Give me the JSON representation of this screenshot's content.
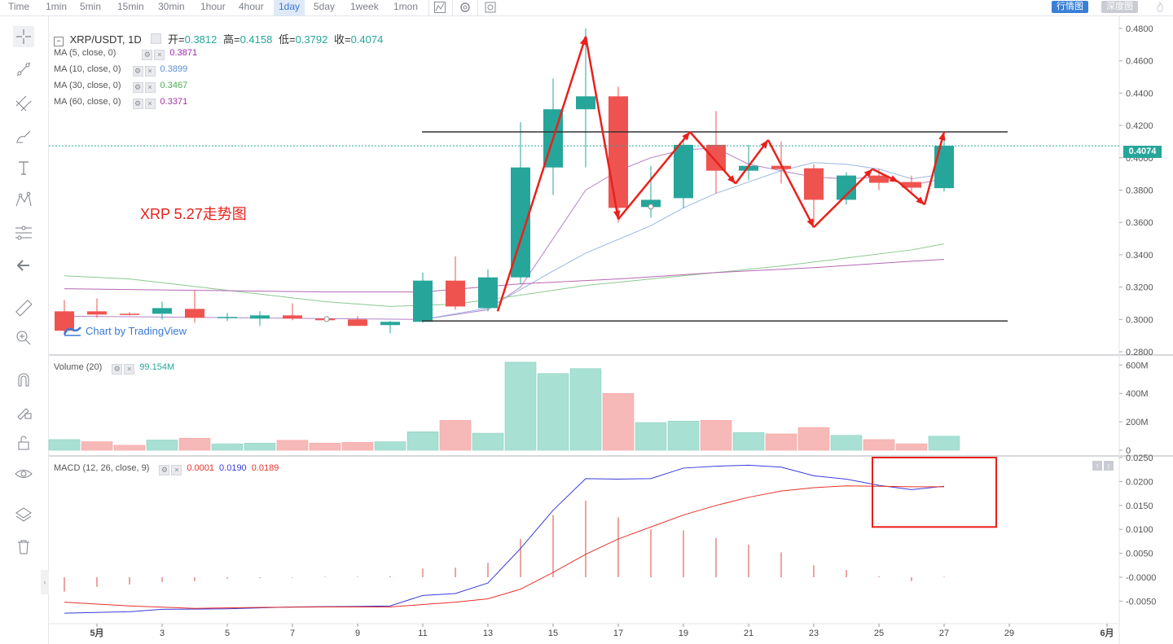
{
  "toolbar": {
    "intervals": [
      "Time",
      "1min",
      "5min",
      "15min",
      "30min",
      "1hour",
      "4hour",
      "1day",
      "5day",
      "1week",
      "1mon"
    ],
    "active_interval": "1day",
    "btn_candles": "行情图",
    "btn_depth": "深度图"
  },
  "header": {
    "symbol": "XRP/USDT, 1D",
    "open_label": "开=",
    "open": "0.3812",
    "high_label": "高=",
    "high": "0.4158",
    "low_label": "低=",
    "low": "0.3792",
    "close_label": "收=",
    "close": "0.4074"
  },
  "indicators": {
    "ma5": {
      "label": "MA (5, close, 0)",
      "value": "0.3871",
      "color": "#9c27b0"
    },
    "ma10": {
      "label": "MA (10, close, 0)",
      "value": "0.3899",
      "color": "#5b8fd6"
    },
    "ma30": {
      "label": "MA (30, close, 0)",
      "value": "0.3467",
      "color": "#4caf50"
    },
    "ma60": {
      "label": "MA (60, close, 0)",
      "value": "0.3371",
      "color": "#a0349c"
    }
  },
  "annotation_title": "XRP 5.27走势图",
  "watermark": "Chart by TradingView",
  "last_price_tag": "0.4074",
  "volume_legend": {
    "label": "Volume (20)",
    "value": "99.154M"
  },
  "macd_legend": {
    "label": "MACD (12, 26, close, 9)",
    "hist": "0.0001",
    "macd": "0.0190",
    "signal": "0.0189"
  },
  "colors": {
    "up": "#26a69a",
    "down": "#ef5350",
    "up_light": "#a8e0d3",
    "down_light": "#f7b9b8",
    "annotation": "#e8211c",
    "macd_line": "#3b3bd8",
    "signal_line": "#e8312a"
  },
  "chart_data": {
    "type": "candlestick",
    "symbol": "XRP/USDT",
    "interval": "1D",
    "x_ticks": [
      "5月",
      "3",
      "5",
      "7",
      "9",
      "11",
      "13",
      "15",
      "17",
      "19",
      "21",
      "23",
      "25",
      "27",
      "29",
      "6月"
    ],
    "price_axis": {
      "ticks": [
        "0.4800",
        "0.4600",
        "0.4400",
        "0.4200",
        "0.4000",
        "0.3800",
        "0.3600",
        "0.3400",
        "0.3200",
        "0.3000",
        "0.2800"
      ],
      "ylim": [
        0.28,
        0.48
      ]
    },
    "volume_axis": {
      "ticks": [
        "600M",
        "400M",
        "200M",
        "0"
      ]
    },
    "macd_axis": {
      "ticks": [
        "0.0250",
        "0.0200",
        "0.0150",
        "0.0100",
        "0.0050",
        "-0.0000",
        "-0.0050"
      ]
    },
    "candles": [
      {
        "day": 1,
        "open": 0.305,
        "high": 0.312,
        "low": 0.292,
        "close": 0.293
      },
      {
        "day": 2,
        "open": 0.305,
        "high": 0.313,
        "low": 0.301,
        "close": 0.303
      },
      {
        "day": 3,
        "open": 0.3035,
        "high": 0.3045,
        "low": 0.3025,
        "close": 0.303
      },
      {
        "day": 4,
        "open": 0.3035,
        "high": 0.311,
        "low": 0.3,
        "close": 0.307
      },
      {
        "day": 5,
        "open": 0.3065,
        "high": 0.318,
        "low": 0.298,
        "close": 0.301
      },
      {
        "day": 6,
        "open": 0.301,
        "high": 0.304,
        "low": 0.299,
        "close": 0.3015
      },
      {
        "day": 7,
        "open": 0.3005,
        "high": 0.305,
        "low": 0.296,
        "close": 0.3025
      },
      {
        "day": 8,
        "open": 0.3025,
        "high": 0.31,
        "low": 0.2995,
        "close": 0.3005
      },
      {
        "day": 9,
        "open": 0.3005,
        "high": 0.3015,
        "low": 0.299,
        "close": 0.2995
      },
      {
        "day": 10,
        "open": 0.3,
        "high": 0.302,
        "low": 0.296,
        "close": 0.296
      },
      {
        "day": 11,
        "open": 0.2965,
        "high": 0.299,
        "low": 0.2915,
        "close": 0.2985
      },
      {
        "day": 12,
        "open": 0.2985,
        "high": 0.329,
        "low": 0.298,
        "close": 0.324
      },
      {
        "day": 13,
        "open": 0.324,
        "high": 0.339,
        "low": 0.306,
        "close": 0.308
      },
      {
        "day": 14,
        "open": 0.307,
        "high": 0.331,
        "low": 0.305,
        "close": 0.326
      },
      {
        "day": 15,
        "open": 0.326,
        "high": 0.422,
        "low": 0.322,
        "close": 0.394
      },
      {
        "day": 16,
        "open": 0.394,
        "high": 0.449,
        "low": 0.377,
        "close": 0.43
      },
      {
        "day": 17,
        "open": 0.43,
        "high": 0.48,
        "low": 0.394,
        "close": 0.438
      },
      {
        "day": 18,
        "open": 0.438,
        "high": 0.444,
        "low": 0.36,
        "close": 0.369
      },
      {
        "day": 19,
        "open": 0.3695,
        "high": 0.395,
        "low": 0.363,
        "close": 0.374
      },
      {
        "day": 20,
        "open": 0.375,
        "high": 0.412,
        "low": 0.369,
        "close": 0.408
      },
      {
        "day": 21,
        "open": 0.408,
        "high": 0.429,
        "low": 0.378,
        "close": 0.392
      },
      {
        "day": 22,
        "open": 0.392,
        "high": 0.408,
        "low": 0.386,
        "close": 0.395
      },
      {
        "day": 23,
        "open": 0.395,
        "high": 0.41,
        "low": 0.384,
        "close": 0.393
      },
      {
        "day": 24,
        "open": 0.3935,
        "high": 0.396,
        "low": 0.36,
        "close": 0.374
      },
      {
        "day": 25,
        "open": 0.374,
        "high": 0.391,
        "low": 0.371,
        "close": 0.389
      },
      {
        "day": 26,
        "open": 0.389,
        "high": 0.393,
        "low": 0.38,
        "close": 0.3845
      },
      {
        "day": 27,
        "open": 0.385,
        "high": 0.389,
        "low": 0.379,
        "close": 0.3815
      },
      {
        "day": 28,
        "open": 0.3812,
        "high": 0.4158,
        "low": 0.3792,
        "close": 0.4074
      }
    ],
    "volume": [
      {
        "day": 1,
        "value": 75,
        "dir": "up"
      },
      {
        "day": 2,
        "value": 60,
        "dir": "down"
      },
      {
        "day": 3,
        "value": 35,
        "dir": "down"
      },
      {
        "day": 4,
        "value": 72,
        "dir": "up"
      },
      {
        "day": 5,
        "value": 85,
        "dir": "down"
      },
      {
        "day": 6,
        "value": 45,
        "dir": "up"
      },
      {
        "day": 7,
        "value": 50,
        "dir": "up"
      },
      {
        "day": 8,
        "value": 70,
        "dir": "down"
      },
      {
        "day": 9,
        "value": 50,
        "dir": "down"
      },
      {
        "day": 10,
        "value": 55,
        "dir": "down"
      },
      {
        "day": 11,
        "value": 60,
        "dir": "up"
      },
      {
        "day": 12,
        "value": 130,
        "dir": "up"
      },
      {
        "day": 13,
        "value": 210,
        "dir": "down"
      },
      {
        "day": 14,
        "value": 120,
        "dir": "up"
      },
      {
        "day": 15,
        "value": 620,
        "dir": "up"
      },
      {
        "day": 16,
        "value": 540,
        "dir": "up"
      },
      {
        "day": 17,
        "value": 575,
        "dir": "up"
      },
      {
        "day": 18,
        "value": 400,
        "dir": "down"
      },
      {
        "day": 19,
        "value": 195,
        "dir": "up"
      },
      {
        "day": 20,
        "value": 205,
        "dir": "up"
      },
      {
        "day": 21,
        "value": 210,
        "dir": "down"
      },
      {
        "day": 22,
        "value": 125,
        "dir": "up"
      },
      {
        "day": 23,
        "value": 115,
        "dir": "down"
      },
      {
        "day": 24,
        "value": 160,
        "dir": "down"
      },
      {
        "day": 25,
        "value": 105,
        "dir": "up"
      },
      {
        "day": 26,
        "value": 75,
        "dir": "down"
      },
      {
        "day": 27,
        "value": 45,
        "dir": "down"
      },
      {
        "day": 28,
        "value": 99.154,
        "dir": "up"
      }
    ],
    "ma_lines": {
      "ma5": [
        [
          1,
          0.302
        ],
        [
          12,
          0.3
        ],
        [
          14,
          0.306
        ],
        [
          15,
          0.32
        ],
        [
          16,
          0.35
        ],
        [
          17,
          0.38
        ],
        [
          18,
          0.392
        ],
        [
          19,
          0.4
        ],
        [
          20,
          0.405
        ],
        [
          21,
          0.406
        ],
        [
          22,
          0.396
        ],
        [
          23,
          0.392
        ],
        [
          24,
          0.388
        ],
        [
          25,
          0.387
        ],
        [
          26,
          0.388
        ],
        [
          27,
          0.383
        ],
        [
          28,
          0.3871
        ]
      ],
      "ma10": [
        [
          12,
          0.3
        ],
        [
          14,
          0.307
        ],
        [
          16,
          0.33
        ],
        [
          17,
          0.341
        ],
        [
          19,
          0.358
        ],
        [
          20,
          0.369
        ],
        [
          21,
          0.378
        ],
        [
          22,
          0.385
        ],
        [
          23,
          0.392
        ],
        [
          24,
          0.397
        ],
        [
          25,
          0.396
        ],
        [
          26,
          0.393
        ],
        [
          27,
          0.387
        ],
        [
          28,
          0.3899
        ]
      ],
      "ma30": [
        [
          1,
          0.327
        ],
        [
          3,
          0.325
        ],
        [
          6,
          0.318
        ],
        [
          9,
          0.311
        ],
        [
          11,
          0.308
        ],
        [
          13,
          0.3095
        ],
        [
          15,
          0.315
        ],
        [
          17,
          0.321
        ],
        [
          19,
          0.325
        ],
        [
          21,
          0.329
        ],
        [
          23,
          0.333
        ],
        [
          25,
          0.338
        ],
        [
          27,
          0.343
        ],
        [
          28,
          0.3467
        ]
      ],
      "ma60": [
        [
          1,
          0.319
        ],
        [
          5,
          0.318
        ],
        [
          9,
          0.317
        ],
        [
          12,
          0.317
        ],
        [
          15,
          0.322
        ],
        [
          18,
          0.325
        ],
        [
          21,
          0.329
        ],
        [
          24,
          0.332
        ],
        [
          27,
          0.336
        ],
        [
          28,
          0.3371
        ]
      ]
    },
    "horizontal_lines": [
      {
        "price": 0.416,
        "from_day": 12,
        "to_day": 29
      },
      {
        "price": 0.299,
        "from_day": 12,
        "to_day": 29
      }
    ],
    "annotation_zigzag": [
      [
        14.3,
        0.305
      ],
      [
        17,
        0.475
      ],
      [
        18,
        0.362
      ],
      [
        20.2,
        0.416
      ],
      [
        21.6,
        0.384
      ],
      [
        22.6,
        0.411
      ],
      [
        24,
        0.357
      ],
      [
        25.8,
        0.393
      ],
      [
        26.6,
        0.385
      ],
      [
        27.4,
        0.371
      ],
      [
        28,
        0.416
      ]
    ],
    "macd": {
      "macd_line": [
        [
          1,
          -0.0075
        ],
        [
          3,
          -0.0072
        ],
        [
          4,
          -0.0067
        ],
        [
          6,
          -0.0066
        ],
        [
          8,
          -0.0062
        ],
        [
          10,
          -0.0061
        ],
        [
          11,
          -0.006
        ],
        [
          12,
          -0.0038
        ],
        [
          13,
          -0.0034
        ],
        [
          14,
          -0.0012
        ],
        [
          15,
          0.006
        ],
        [
          16,
          0.014
        ],
        [
          17,
          0.0206
        ],
        [
          18,
          0.0205
        ],
        [
          19,
          0.0206
        ],
        [
          20,
          0.0228
        ],
        [
          21,
          0.0232
        ],
        [
          22,
          0.0234
        ],
        [
          23,
          0.023
        ],
        [
          24,
          0.0212
        ],
        [
          25,
          0.0205
        ],
        [
          26,
          0.0192
        ],
        [
          27,
          0.0183
        ],
        [
          28,
          0.019
        ]
      ],
      "signal_line": [
        [
          1,
          -0.0052
        ],
        [
          3,
          -0.006
        ],
        [
          5,
          -0.0065
        ],
        [
          7,
          -0.0063
        ],
        [
          9,
          -0.0062
        ],
        [
          11,
          -0.0062
        ],
        [
          12,
          -0.0057
        ],
        [
          13,
          -0.0052
        ],
        [
          14,
          -0.0045
        ],
        [
          15,
          -0.0025
        ],
        [
          16,
          0.001
        ],
        [
          17,
          0.0048
        ],
        [
          18,
          0.008
        ],
        [
          19,
          0.0105
        ],
        [
          20,
          0.013
        ],
        [
          21,
          0.015
        ],
        [
          22,
          0.0167
        ],
        [
          23,
          0.018
        ],
        [
          24,
          0.0187
        ],
        [
          25,
          0.0191
        ],
        [
          26,
          0.019
        ],
        [
          27,
          0.0189
        ],
        [
          28,
          0.0189
        ]
      ],
      "histogram": [
        [
          1,
          -0.003
        ],
        [
          2,
          -0.002
        ],
        [
          3,
          -0.0015
        ],
        [
          4,
          -0.001
        ],
        [
          5,
          -0.0008
        ],
        [
          6,
          -0.0003
        ],
        [
          7,
          -0.0002
        ],
        [
          8,
          -0.0001
        ],
        [
          9,
          0.0001
        ],
        [
          10,
          0.0001
        ],
        [
          11,
          0.0002
        ],
        [
          12,
          0.0018
        ],
        [
          13,
          0.002
        ],
        [
          14,
          0.003
        ],
        [
          15,
          0.008
        ],
        [
          16,
          0.013
        ],
        [
          17,
          0.016
        ],
        [
          18,
          0.0125
        ],
        [
          19,
          0.01
        ],
        [
          20,
          0.0098
        ],
        [
          21,
          0.0082
        ],
        [
          22,
          0.0068
        ],
        [
          23,
          0.0052
        ],
        [
          24,
          0.0025
        ],
        [
          25,
          0.0015
        ],
        [
          26,
          0.0002
        ],
        [
          27,
          -0.0008
        ],
        [
          28,
          0.0001
        ]
      ]
    },
    "highlight_box": {
      "from_day": 25.8,
      "to_day": 29.6,
      "top": 0.025,
      "bottom": 0.0105
    }
  }
}
